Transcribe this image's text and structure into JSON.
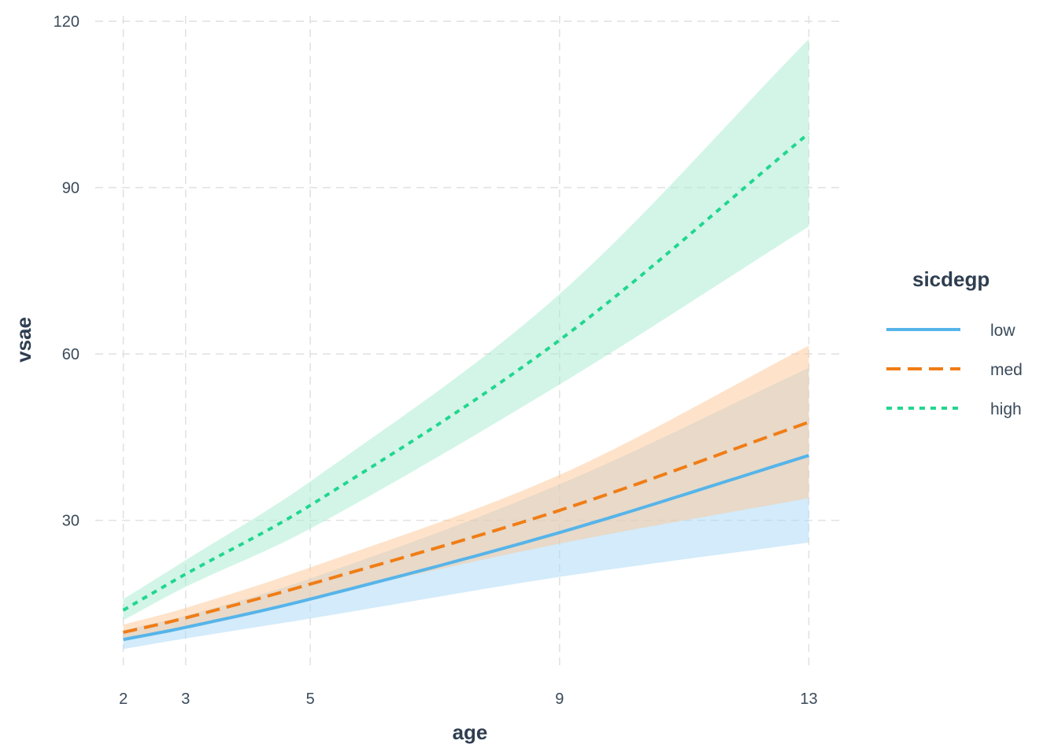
{
  "chart_data": {
    "type": "line",
    "xlabel": "age",
    "ylabel": "vsae",
    "x_ticks": [
      2,
      3,
      5,
      9,
      13
    ],
    "y_ticks": [
      30,
      60,
      90,
      120
    ],
    "xlim": [
      1.55,
      13.55
    ],
    "ylim": [
      3,
      121
    ],
    "grid": true,
    "legend": {
      "title": "sicdegp",
      "placement": "right"
    },
    "x": [
      2,
      3,
      5,
      9,
      13
    ],
    "series": [
      {
        "name": "low",
        "color": "#56b4e9",
        "dash": "solid",
        "values": [
          8.5,
          10.7,
          15.8,
          27.8,
          41.7
        ],
        "lower": [
          6.8,
          8.7,
          12.3,
          19.8,
          26.0
        ],
        "upper": [
          10.2,
          12.8,
          19.5,
          36.5,
          57.5
        ],
        "band_color": "#a8d8f5"
      },
      {
        "name": "med",
        "color": "#f07d16",
        "dash": "dashed",
        "values": [
          9.8,
          12.4,
          18.5,
          31.8,
          47.7
        ],
        "lower": [
          8.5,
          10.8,
          16.0,
          25.8,
          34.0
        ],
        "upper": [
          11.2,
          14.2,
          21.5,
          38.2,
          61.5
        ],
        "band_color": "#fdc796"
      },
      {
        "name": "high",
        "color": "#22d690",
        "dash": "dotted",
        "values": [
          13.8,
          20.3,
          32.7,
          62.5,
          99.8
        ],
        "lower": [
          12.0,
          18.0,
          28.5,
          54.5,
          83.0
        ],
        "upper": [
          15.8,
          22.8,
          37.0,
          70.8,
          116.8
        ],
        "band_color": "#a6ebd0"
      }
    ]
  }
}
